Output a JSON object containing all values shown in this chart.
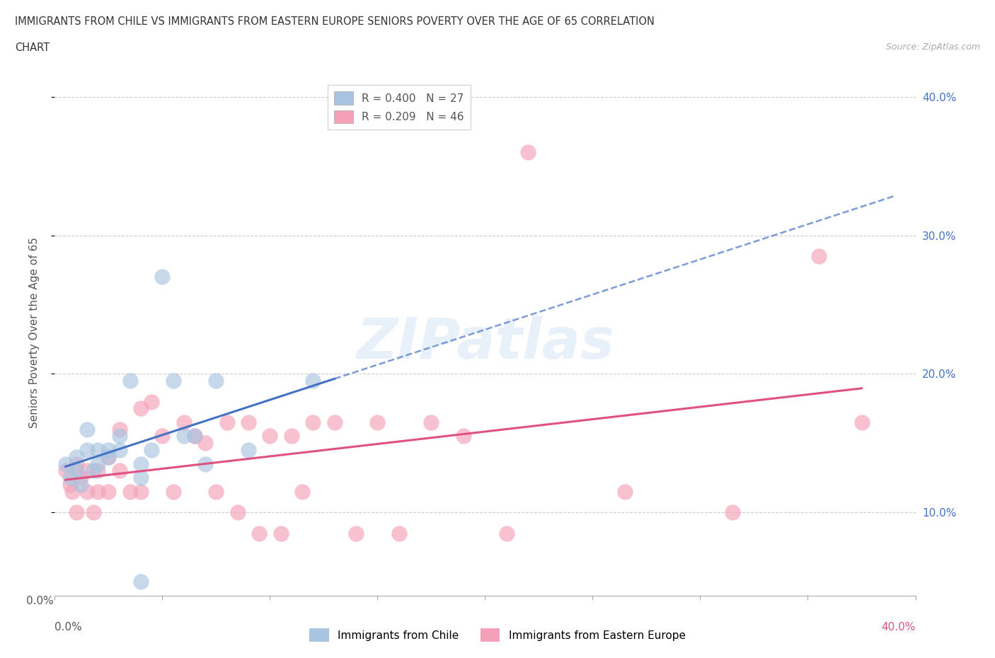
{
  "title_line1": "IMMIGRANTS FROM CHILE VS IMMIGRANTS FROM EASTERN EUROPE SENIORS POVERTY OVER THE AGE OF 65 CORRELATION",
  "title_line2": "CHART",
  "source": "Source: ZipAtlas.com",
  "ylabel": "Seniors Poverty Over the Age of 65",
  "xlabel_chile": "Immigrants from Chile",
  "xlabel_ee": "Immigrants from Eastern Europe",
  "xlim": [
    0.0,
    0.4
  ],
  "ylim": [
    0.04,
    0.42
  ],
  "chile_R": 0.4,
  "chile_N": 27,
  "ee_R": 0.209,
  "ee_N": 46,
  "chile_color": "#a8c4e0",
  "chile_line_color": "#4472c4",
  "ee_color": "#f4a0b8",
  "ee_line_color": "#e05080",
  "watermark": "ZIPatlas",
  "right_ytick_vals": [
    0.1,
    0.2,
    0.3,
    0.4
  ],
  "right_ytick_labels": [
    "10.0%",
    "20.0%",
    "30.0%",
    "40.0%"
  ],
  "xtick_vals": [
    0.0,
    0.05,
    0.1,
    0.15,
    0.2,
    0.25,
    0.3,
    0.35,
    0.4
  ],
  "chile_x": [
    0.005,
    0.007,
    0.01,
    0.01,
    0.012,
    0.015,
    0.015,
    0.018,
    0.02,
    0.02,
    0.025,
    0.025,
    0.03,
    0.03,
    0.035,
    0.04,
    0.04,
    0.045,
    0.05,
    0.055,
    0.06,
    0.065,
    0.07,
    0.075,
    0.09,
    0.12,
    0.04
  ],
  "chile_y": [
    0.135,
    0.125,
    0.14,
    0.13,
    0.12,
    0.16,
    0.145,
    0.13,
    0.145,
    0.135,
    0.145,
    0.14,
    0.155,
    0.145,
    0.195,
    0.135,
    0.125,
    0.145,
    0.27,
    0.195,
    0.155,
    0.155,
    0.135,
    0.195,
    0.145,
    0.195,
    0.05
  ],
  "ee_x": [
    0.005,
    0.007,
    0.008,
    0.01,
    0.01,
    0.012,
    0.015,
    0.015,
    0.018,
    0.02,
    0.02,
    0.025,
    0.025,
    0.03,
    0.03,
    0.035,
    0.04,
    0.04,
    0.045,
    0.05,
    0.055,
    0.06,
    0.065,
    0.07,
    0.075,
    0.08,
    0.085,
    0.09,
    0.095,
    0.1,
    0.105,
    0.11,
    0.115,
    0.12,
    0.13,
    0.14,
    0.15,
    0.16,
    0.175,
    0.19,
    0.21,
    0.22,
    0.265,
    0.315,
    0.355,
    0.375
  ],
  "ee_y": [
    0.13,
    0.12,
    0.115,
    0.135,
    0.1,
    0.125,
    0.13,
    0.115,
    0.1,
    0.13,
    0.115,
    0.14,
    0.115,
    0.16,
    0.13,
    0.115,
    0.175,
    0.115,
    0.18,
    0.155,
    0.115,
    0.165,
    0.155,
    0.15,
    0.115,
    0.165,
    0.1,
    0.165,
    0.085,
    0.155,
    0.085,
    0.155,
    0.115,
    0.165,
    0.165,
    0.085,
    0.165,
    0.085,
    0.165,
    0.155,
    0.085,
    0.36,
    0.115,
    0.1,
    0.285,
    0.165
  ]
}
